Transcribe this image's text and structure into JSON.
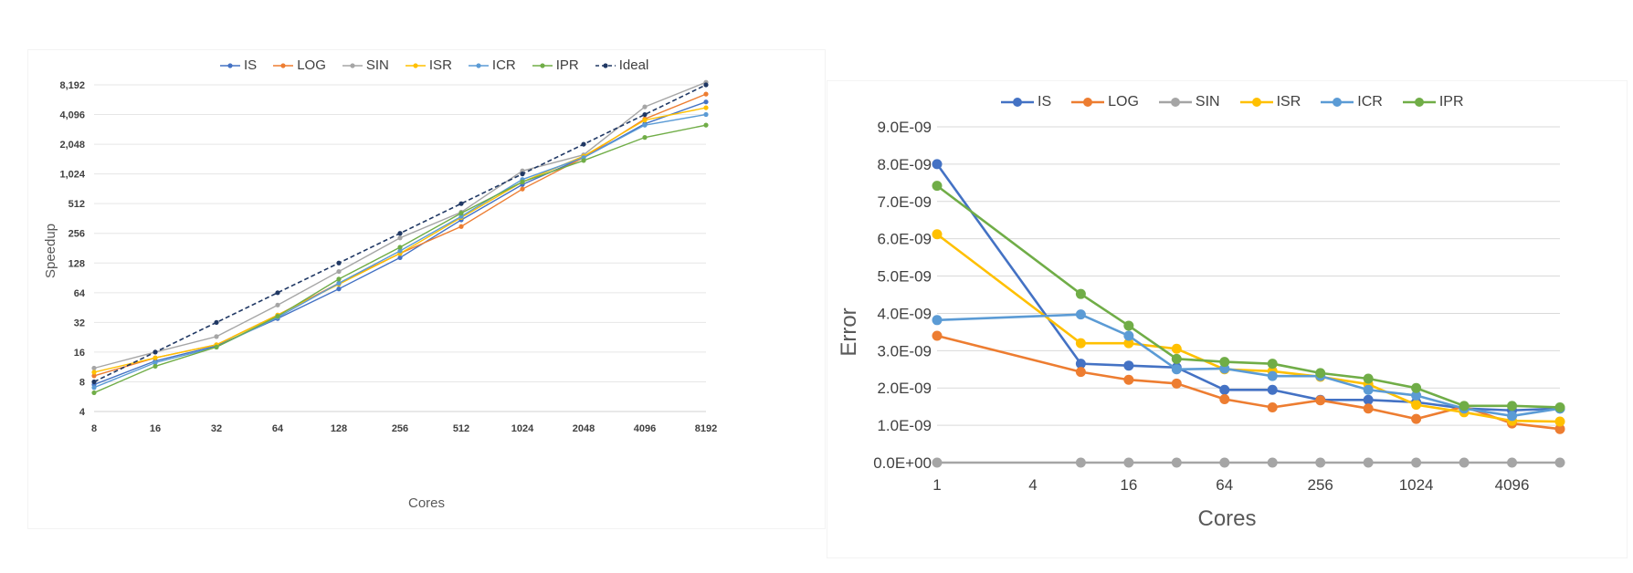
{
  "chart_data": [
    {
      "type": "line",
      "title": "",
      "xlabel": "Cores",
      "ylabel": "Speedup",
      "x_scale": "log2",
      "y_scale": "log2",
      "categories": [
        8,
        16,
        32,
        64,
        128,
        256,
        512,
        1024,
        2048,
        4096,
        8192
      ],
      "x_tick_labels": [
        "8",
        "16",
        "32",
        "64",
        "128",
        "256",
        "512",
        "1024",
        "2048",
        "4096",
        "8192"
      ],
      "y_ticks": [
        4,
        8,
        16,
        32,
        64,
        128,
        256,
        512,
        1024,
        2048,
        4096,
        8192
      ],
      "y_tick_labels": [
        "4",
        "8",
        "16",
        "32",
        "64",
        "128",
        "256",
        "512",
        "1,024",
        "2,048",
        "4,096",
        "8,192"
      ],
      "ylim": [
        4,
        8192
      ],
      "grid": "horizontal",
      "legend_position": "top",
      "series": [
        {
          "name": "IS",
          "color": "#4472c4",
          "dash": false,
          "values": [
            7.5,
            13,
            18.5,
            35,
            70,
            145,
            350,
            800,
            1500,
            3300,
            5500
          ]
        },
        {
          "name": "LOG",
          "color": "#ed7d31",
          "dash": false,
          "values": [
            9.2,
            14,
            19,
            38,
            80,
            160,
            300,
            720,
            1500,
            3700,
            6600
          ]
        },
        {
          "name": "SIN",
          "color": "#a5a5a5",
          "dash": false,
          "values": [
            11,
            16,
            23,
            48,
            105,
            230,
            420,
            1100,
            1600,
            4900,
            8700
          ]
        },
        {
          "name": "ISR",
          "color": "#ffc000",
          "dash": false,
          "values": [
            10,
            14,
            19,
            38,
            78,
            160,
            370,
            850,
            1550,
            3600,
            4800
          ]
        },
        {
          "name": "ICR",
          "color": "#5b9bd5",
          "dash": false,
          "values": [
            7,
            12.5,
            18,
            36,
            80,
            170,
            380,
            900,
            1500,
            3200,
            4100
          ]
        },
        {
          "name": "IPR",
          "color": "#70ad47",
          "dash": false,
          "values": [
            6.2,
            11.5,
            18,
            37,
            88,
            185,
            410,
            850,
            1400,
            2400,
            3200
          ]
        },
        {
          "name": "Ideal",
          "color": "#203864",
          "dash": true,
          "values": [
            8,
            16,
            32,
            64,
            128,
            256,
            512,
            1024,
            2048,
            4096,
            8192
          ]
        }
      ]
    },
    {
      "type": "line",
      "title": "",
      "xlabel": "Cores",
      "ylabel": "Error",
      "x_scale": "log2",
      "x_ticks": [
        1,
        4,
        16,
        64,
        256,
        1024,
        4096
      ],
      "x_tick_labels": [
        "1",
        "4",
        "16",
        "64",
        "256",
        "1024",
        "4096"
      ],
      "x_points": [
        1,
        8,
        16,
        32,
        64,
        128,
        256,
        512,
        1024,
        2048,
        4096,
        8192
      ],
      "y_ticks": [
        0,
        1e-09,
        2e-09,
        3e-09,
        4e-09,
        5e-09,
        6e-09,
        7e-09,
        8e-09,
        9e-09
      ],
      "y_tick_labels": [
        "0.0E+00",
        "1.0E-09",
        "2.0E-09",
        "3.0E-09",
        "4.0E-09",
        "5.0E-09",
        "6.0E-09",
        "7.0E-09",
        "8.0E-09",
        "9.0E-09"
      ],
      "ylim": [
        0,
        9e-09
      ],
      "grid": "horizontal",
      "legend_position": "top",
      "series": [
        {
          "name": "IS",
          "color": "#4472c4",
          "values": [
            8e-09,
            2.65e-09,
            2.6e-09,
            2.55e-09,
            1.95e-09,
            1.95e-09,
            1.68e-09,
            1.68e-09,
            1.62e-09,
            1.45e-09,
            1.4e-09,
            1.45e-09
          ]
        },
        {
          "name": "LOG",
          "color": "#ed7d31",
          "values": [
            3.4e-09,
            2.43e-09,
            2.22e-09,
            2.12e-09,
            1.7e-09,
            1.48e-09,
            1.67e-09,
            1.45e-09,
            1.17e-09,
            1.5e-09,
            1.05e-09,
            9e-10
          ]
        },
        {
          "name": "SIN",
          "color": "#a5a5a5",
          "values": [
            0,
            0,
            0,
            0,
            0,
            0,
            0,
            0,
            0,
            0,
            0,
            0
          ]
        },
        {
          "name": "ISR",
          "color": "#ffc000",
          "values": [
            6.12e-09,
            3.2e-09,
            3.2e-09,
            3.05e-09,
            2.5e-09,
            2.45e-09,
            2.3e-09,
            2.1e-09,
            1.55e-09,
            1.35e-09,
            1.12e-09,
            1.1e-09
          ]
        },
        {
          "name": "ICR",
          "color": "#5b9bd5",
          "values": [
            3.82e-09,
            3.97e-09,
            3.4e-09,
            2.5e-09,
            2.52e-09,
            2.32e-09,
            2.32e-09,
            1.95e-09,
            1.8e-09,
            1.45e-09,
            1.25e-09,
            1.45e-09
          ]
        },
        {
          "name": "IPR",
          "color": "#70ad47",
          "values": [
            7.42e-09,
            4.52e-09,
            3.67e-09,
            2.78e-09,
            2.7e-09,
            2.65e-09,
            2.4e-09,
            2.25e-09,
            2e-09,
            1.52e-09,
            1.52e-09,
            1.48e-09
          ]
        }
      ]
    }
  ]
}
